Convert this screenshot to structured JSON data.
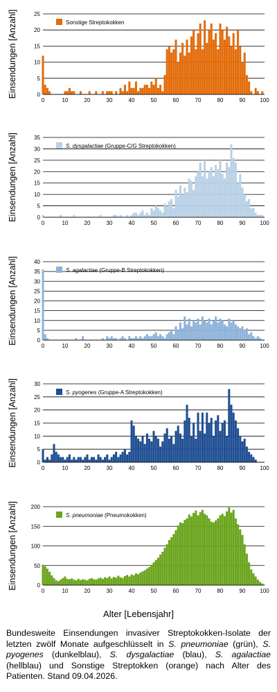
{
  "xlabel": "Alter [Lebensjahr]",
  "caption": {
    "p1": "Bundesweite Einsendungen invasiver Streptokokken-Isolate der letzten zwölf Monate aufgeschlüsselt in ",
    "sp1": "S. pneumoniae",
    "p2": " (grün), ",
    "sp2": "S. pyogenes",
    "p3": " (dunkelblau), ",
    "sp3": "S. dysgalactiae",
    "p4": " (blau), ",
    "sp4": "S. agalactiae",
    "p5": " (hellblau) und Sonstige Streptokken (orange) nach Alter des Patienten. Stand 09.04.2026."
  },
  "chart_data": [
    {
      "type": "bar",
      "ylabel": "Einsendungen [Anzahl]",
      "legend_prefix": "",
      "legend_suffix": "Sonstige Streptokokken",
      "color": "#e36c0a",
      "ylim": [
        0,
        25
      ],
      "yticks": [
        0,
        5,
        10,
        15,
        20,
        25
      ],
      "xlim": [
        0,
        100
      ],
      "xticks": [
        0,
        10,
        20,
        30,
        40,
        50,
        60,
        70,
        80,
        90,
        100
      ],
      "x": [
        0,
        1,
        2,
        3,
        4,
        5,
        6,
        7,
        8,
        9,
        10,
        11,
        12,
        13,
        14,
        15,
        16,
        17,
        18,
        19,
        20,
        21,
        22,
        23,
        24,
        25,
        26,
        27,
        28,
        29,
        30,
        31,
        32,
        33,
        34,
        35,
        36,
        37,
        38,
        39,
        40,
        41,
        42,
        43,
        44,
        45,
        46,
        47,
        48,
        49,
        50,
        51,
        52,
        53,
        54,
        55,
        56,
        57,
        58,
        59,
        60,
        61,
        62,
        63,
        64,
        65,
        66,
        67,
        68,
        69,
        70,
        71,
        72,
        73,
        74,
        75,
        76,
        77,
        78,
        79,
        80,
        81,
        82,
        83,
        84,
        85,
        86,
        87,
        88,
        89,
        90,
        91,
        92,
        93,
        94,
        95,
        96,
        97,
        98,
        99,
        100
      ],
      "values": [
        12,
        3,
        2,
        1,
        0,
        0,
        0,
        0,
        0,
        0,
        1,
        1,
        2,
        1,
        1,
        0,
        0,
        1,
        0,
        0,
        0,
        1,
        0,
        0,
        1,
        0,
        0,
        1,
        0,
        1,
        1,
        1,
        0,
        1,
        0,
        2,
        1,
        3,
        1,
        4,
        2,
        2,
        4,
        1,
        2,
        2,
        3,
        3,
        2,
        4,
        3,
        5,
        2,
        3,
        1,
        6,
        14,
        15,
        13,
        14,
        17,
        10,
        13,
        16,
        12,
        17,
        13,
        18,
        20,
        14,
        19,
        22,
        14,
        23,
        16,
        20,
        22,
        17,
        19,
        14,
        22,
        20,
        17,
        21,
        18,
        15,
        19,
        14,
        20,
        15,
        10,
        13,
        6,
        4,
        1,
        0,
        2,
        1,
        0,
        1,
        0
      ]
    },
    {
      "type": "bar",
      "ylabel": "Einsendungen [Anzahl]",
      "legend_prefix": "S. dysgalactiae",
      "legend_suffix": " (Gruppe-C/G Streptokokken)",
      "color": "#b9d1e7",
      "ylim": [
        0,
        35
      ],
      "yticks": [
        0,
        5,
        10,
        15,
        20,
        25,
        30,
        35
      ],
      "xlim": [
        0,
        100
      ],
      "xticks": [
        0,
        10,
        20,
        30,
        40,
        50,
        60,
        70,
        80,
        90,
        100
      ],
      "x": [
        0,
        1,
        2,
        3,
        4,
        5,
        6,
        7,
        8,
        9,
        10,
        11,
        12,
        13,
        14,
        15,
        16,
        17,
        18,
        19,
        20,
        21,
        22,
        23,
        24,
        25,
        26,
        27,
        28,
        29,
        30,
        31,
        32,
        33,
        34,
        35,
        36,
        37,
        38,
        39,
        40,
        41,
        42,
        43,
        44,
        45,
        46,
        47,
        48,
        49,
        50,
        51,
        52,
        53,
        54,
        55,
        56,
        57,
        58,
        59,
        60,
        61,
        62,
        63,
        64,
        65,
        66,
        67,
        68,
        69,
        70,
        71,
        72,
        73,
        74,
        75,
        76,
        77,
        78,
        79,
        80,
        81,
        82,
        83,
        84,
        85,
        86,
        87,
        88,
        89,
        90,
        91,
        92,
        93,
        94,
        95,
        96,
        97,
        98,
        99,
        100
      ],
      "values": [
        1,
        0,
        0,
        0,
        0,
        0,
        0,
        0,
        1,
        0,
        0,
        0,
        0,
        0,
        1,
        0,
        0,
        0,
        0,
        0,
        0,
        0,
        0,
        0,
        0,
        0,
        1,
        0,
        0,
        0,
        0,
        0,
        1,
        1,
        0,
        1,
        0,
        0,
        1,
        0,
        1,
        2,
        2,
        1,
        2,
        3,
        1,
        2,
        1,
        4,
        3,
        5,
        4,
        3,
        2,
        6,
        5,
        7,
        8,
        4,
        12,
        9,
        14,
        10,
        13,
        11,
        17,
        16,
        12,
        18,
        20,
        24,
        18,
        25,
        17,
        20,
        22,
        18,
        23,
        21,
        25,
        19,
        17,
        24,
        22,
        32,
        26,
        24,
        15,
        19,
        13,
        10,
        7,
        8,
        4,
        4,
        2,
        1,
        1,
        1,
        0
      ]
    },
    {
      "type": "bar",
      "ylabel": "Einsendungen [Anzahl]",
      "legend_prefix": "S. agalactiae",
      "legend_suffix": " (Gruppe-B Streptokokken)",
      "color": "#8eb3d9",
      "ylim": [
        0,
        40
      ],
      "yticks": [
        0,
        5,
        10,
        15,
        20,
        25,
        30,
        35,
        40
      ],
      "xlim": [
        0,
        100
      ],
      "xticks": [
        0,
        10,
        20,
        30,
        40,
        50,
        60,
        70,
        80,
        90,
        100
      ],
      "x": [
        0,
        1,
        2,
        3,
        4,
        5,
        6,
        7,
        8,
        9,
        10,
        11,
        12,
        13,
        14,
        15,
        16,
        17,
        18,
        19,
        20,
        21,
        22,
        23,
        24,
        25,
        26,
        27,
        28,
        29,
        30,
        31,
        32,
        33,
        34,
        35,
        36,
        37,
        38,
        39,
        40,
        41,
        42,
        43,
        44,
        45,
        46,
        47,
        48,
        49,
        50,
        51,
        52,
        53,
        54,
        55,
        56,
        57,
        58,
        59,
        60,
        61,
        62,
        63,
        64,
        65,
        66,
        67,
        68,
        69,
        70,
        71,
        72,
        73,
        74,
        75,
        76,
        77,
        78,
        79,
        80,
        81,
        82,
        83,
        84,
        85,
        86,
        87,
        88,
        89,
        90,
        91,
        92,
        93,
        94,
        95,
        96,
        97,
        98,
        99,
        100
      ],
      "values": [
        36,
        3,
        1,
        0,
        0,
        0,
        0,
        0,
        0,
        0,
        0,
        0,
        0,
        0,
        0,
        1,
        0,
        0,
        2,
        0,
        0,
        0,
        0,
        0,
        0,
        0,
        0,
        1,
        0,
        2,
        1,
        2,
        1,
        1,
        0,
        1,
        2,
        1,
        0,
        2,
        1,
        1,
        2,
        1,
        2,
        1,
        2,
        3,
        2,
        2,
        3,
        4,
        2,
        3,
        2,
        1,
        3,
        4,
        5,
        3,
        7,
        5,
        9,
        6,
        12,
        8,
        11,
        7,
        10,
        9,
        11,
        8,
        12,
        10,
        9,
        11,
        8,
        10,
        12,
        9,
        11,
        10,
        8,
        7,
        11,
        9,
        10,
        8,
        7,
        6,
        7,
        5,
        6,
        3,
        4,
        2,
        1,
        2,
        1,
        0,
        0
      ]
    },
    {
      "type": "bar",
      "ylabel": "Einsendungen [Anzahl]",
      "legend_prefix": "S. pyogenes",
      "legend_suffix": " (Gruppe-A Streptokokken)",
      "color": "#1f4e92",
      "ylim": [
        0,
        30
      ],
      "yticks": [
        0,
        5,
        10,
        15,
        20,
        25,
        30
      ],
      "xlim": [
        0,
        100
      ],
      "xticks": [
        0,
        10,
        20,
        30,
        40,
        50,
        60,
        70,
        80,
        90,
        100
      ],
      "x": [
        0,
        1,
        2,
        3,
        4,
        5,
        6,
        7,
        8,
        9,
        10,
        11,
        12,
        13,
        14,
        15,
        16,
        17,
        18,
        19,
        20,
        21,
        22,
        23,
        24,
        25,
        26,
        27,
        28,
        29,
        30,
        31,
        32,
        33,
        34,
        35,
        36,
        37,
        38,
        39,
        40,
        41,
        42,
        43,
        44,
        45,
        46,
        47,
        48,
        49,
        50,
        51,
        52,
        53,
        54,
        55,
        56,
        57,
        58,
        59,
        60,
        61,
        62,
        63,
        64,
        65,
        66,
        67,
        68,
        69,
        70,
        71,
        72,
        73,
        74,
        75,
        76,
        77,
        78,
        79,
        80,
        81,
        82,
        83,
        84,
        85,
        86,
        87,
        88,
        89,
        90,
        91,
        92,
        93,
        94,
        95,
        96,
        97,
        98,
        99,
        100
      ],
      "values": [
        5,
        1,
        2,
        1,
        3,
        7,
        4,
        3,
        2,
        2,
        1,
        2,
        3,
        1,
        2,
        1,
        2,
        2,
        1,
        2,
        3,
        1,
        2,
        2,
        1,
        3,
        2,
        1,
        2,
        3,
        1,
        2,
        3,
        4,
        2,
        3,
        4,
        5,
        3,
        4,
        16,
        14,
        10,
        9,
        8,
        10,
        7,
        11,
        9,
        8,
        12,
        10,
        9,
        6,
        8,
        11,
        13,
        9,
        10,
        7,
        12,
        14,
        11,
        9,
        16,
        22,
        17,
        10,
        15,
        9,
        19,
        12,
        19,
        11,
        19,
        15,
        17,
        10,
        16,
        18,
        12,
        15,
        16,
        10,
        28,
        22,
        19,
        16,
        13,
        10,
        8,
        9,
        6,
        4,
        3,
        2,
        1,
        0,
        0,
        0,
        0
      ]
    },
    {
      "type": "bar",
      "ylabel": "Einsendungen [Anzahl]",
      "legend_prefix": "S. pneumoniae",
      "legend_suffix": " (Pneumokokken)",
      "color": "#6aa51d",
      "ylim": [
        0,
        200
      ],
      "yticks": [
        0,
        50,
        100,
        150,
        200
      ],
      "xlim": [
        0,
        100
      ],
      "xticks": [
        0,
        10,
        20,
        30,
        40,
        50,
        60,
        70,
        80,
        90,
        100
      ],
      "x": [
        0,
        1,
        2,
        3,
        4,
        5,
        6,
        7,
        8,
        9,
        10,
        11,
        12,
        13,
        14,
        15,
        16,
        17,
        18,
        19,
        20,
        21,
        22,
        23,
        24,
        25,
        26,
        27,
        28,
        29,
        30,
        31,
        32,
        33,
        34,
        35,
        36,
        37,
        38,
        39,
        40,
        41,
        42,
        43,
        44,
        45,
        46,
        47,
        48,
        49,
        50,
        51,
        52,
        53,
        54,
        55,
        56,
        57,
        58,
        59,
        60,
        61,
        62,
        63,
        64,
        65,
        66,
        67,
        68,
        69,
        70,
        71,
        72,
        73,
        74,
        75,
        76,
        77,
        78,
        79,
        80,
        81,
        82,
        83,
        84,
        85,
        86,
        87,
        88,
        89,
        90,
        91,
        92,
        93,
        94,
        95,
        96,
        97,
        98,
        99,
        100
      ],
      "values": [
        52,
        48,
        42,
        34,
        25,
        18,
        12,
        10,
        14,
        18,
        22,
        16,
        15,
        17,
        14,
        12,
        16,
        13,
        15,
        14,
        12,
        16,
        18,
        15,
        14,
        17,
        19,
        16,
        20,
        18,
        22,
        17,
        21,
        19,
        24,
        20,
        18,
        23,
        26,
        22,
        27,
        25,
        30,
        28,
        32,
        35,
        38,
        42,
        46,
        52,
        58,
        64,
        70,
        78,
        85,
        95,
        104,
        115,
        122,
        130,
        140,
        152,
        160,
        158,
        166,
        170,
        180,
        175,
        184,
        190,
        178,
        186,
        192,
        182,
        178,
        170,
        162,
        160,
        165,
        170,
        178,
        182,
        176,
        188,
        198,
        185,
        192,
        170,
        155,
        142,
        128,
        104,
        80,
        58,
        40,
        30,
        22,
        14,
        8,
        4,
        1
      ]
    }
  ]
}
